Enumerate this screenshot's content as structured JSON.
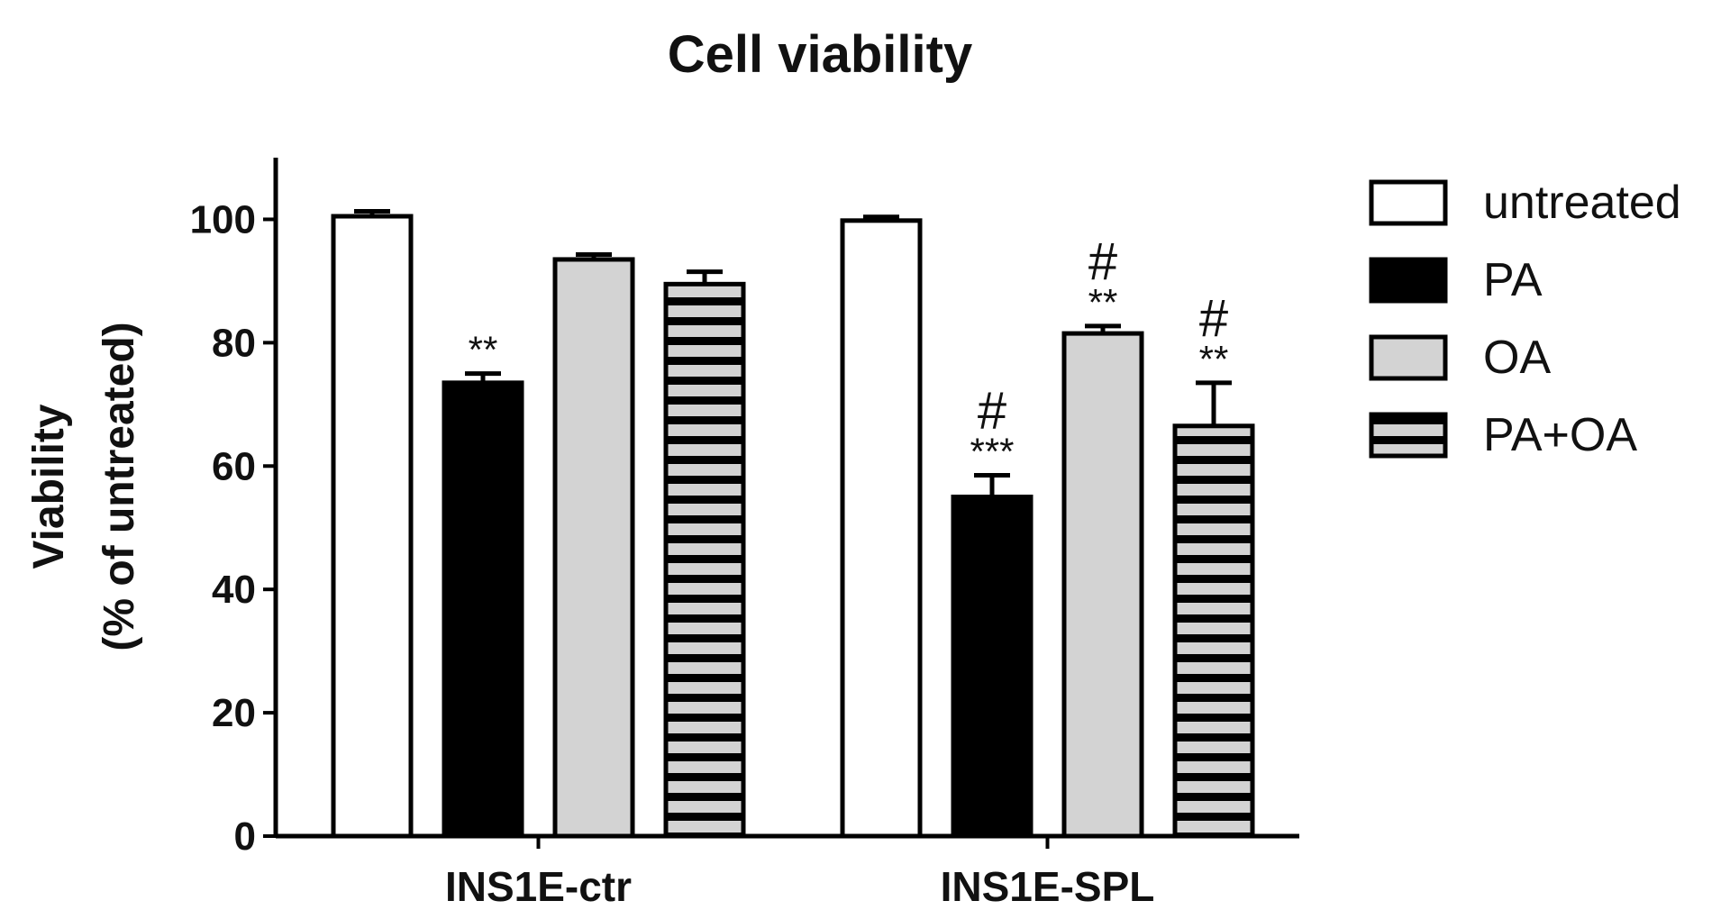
{
  "chart_data": {
    "type": "bar",
    "title": "Cell viability",
    "ylabel_line1": "Viability",
    "ylabel_line2": "(% of untreated)",
    "xlabel": "",
    "ylim": [
      0,
      110
    ],
    "yticks": [
      0,
      20,
      40,
      60,
      80,
      100
    ],
    "categories": [
      "INS1E-ctr",
      "INS1E-SPL"
    ],
    "series": [
      {
        "name": "untreated",
        "values": [
          100.5,
          99.8
        ],
        "errors": [
          0.8,
          0.6
        ],
        "fill": "#ffffff",
        "pattern": "none",
        "annotations": [
          {
            "stars": "",
            "hash": ""
          },
          {
            "stars": "",
            "hash": ""
          }
        ]
      },
      {
        "name": "PA",
        "values": [
          73.5,
          55.0
        ],
        "errors": [
          1.5,
          3.5
        ],
        "fill": "#000000",
        "pattern": "none",
        "annotations": [
          {
            "stars": "**",
            "hash": ""
          },
          {
            "stars": "***",
            "hash": "#"
          }
        ]
      },
      {
        "name": "OA",
        "values": [
          93.5,
          81.5
        ],
        "errors": [
          0.8,
          1.2
        ],
        "fill": "#d3d3d3",
        "pattern": "none",
        "annotations": [
          {
            "stars": "",
            "hash": ""
          },
          {
            "stars": "**",
            "hash": "#"
          }
        ]
      },
      {
        "name": "PA+OA",
        "values": [
          89.5,
          66.5
        ],
        "errors": [
          2.0,
          7.0
        ],
        "fill": "#d3d3d3",
        "pattern": "horizontal-stripes",
        "annotations": [
          {
            "stars": "",
            "hash": ""
          },
          {
            "stars": "**",
            "hash": "#"
          }
        ]
      }
    ],
    "legend_position": "right",
    "grid": false
  }
}
